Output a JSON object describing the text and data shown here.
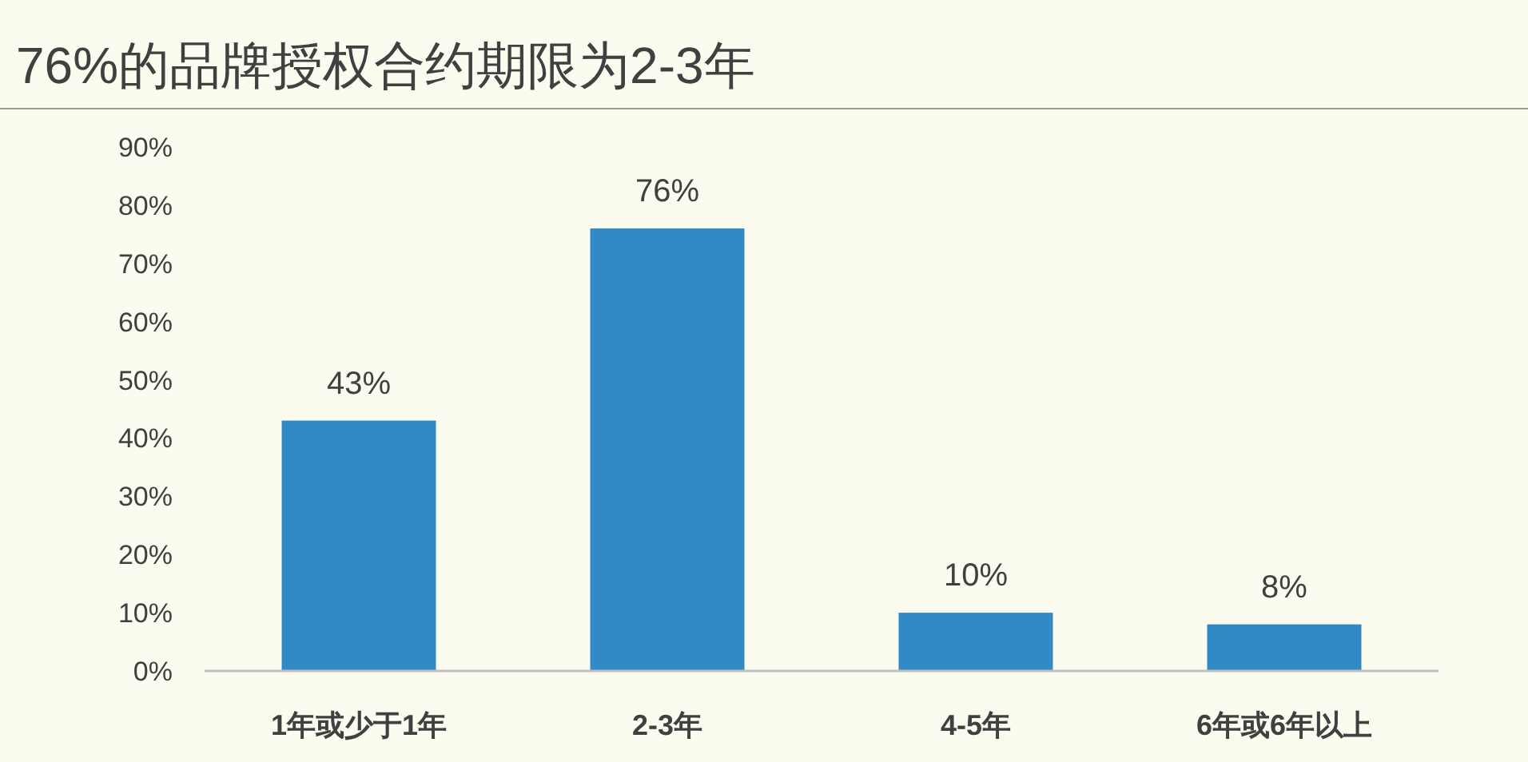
{
  "chart_data": {
    "type": "bar",
    "title": "76%的品牌授权合约期限为2-3年",
    "categories": [
      "1年或少于1年",
      "2-3年",
      "4-5年",
      "6年或6年以上"
    ],
    "values": [
      43,
      76,
      10,
      8
    ],
    "value_labels": [
      "43%",
      "76%",
      "10%",
      "8%"
    ],
    "color": "#3189c6",
    "ylim": [
      0,
      90
    ],
    "yticks": [
      {
        "value": 0,
        "label": "0%"
      },
      {
        "value": 10,
        "label": "10%"
      },
      {
        "value": 20,
        "label": "20%"
      },
      {
        "value": 30,
        "label": "30%"
      },
      {
        "value": 40,
        "label": "40%"
      },
      {
        "value": 50,
        "label": "50%"
      },
      {
        "value": 60,
        "label": "60%"
      },
      {
        "value": 70,
        "label": "70%"
      },
      {
        "value": 80,
        "label": "80%"
      },
      {
        "value": 90,
        "label": "90%"
      }
    ],
    "grid": false
  }
}
